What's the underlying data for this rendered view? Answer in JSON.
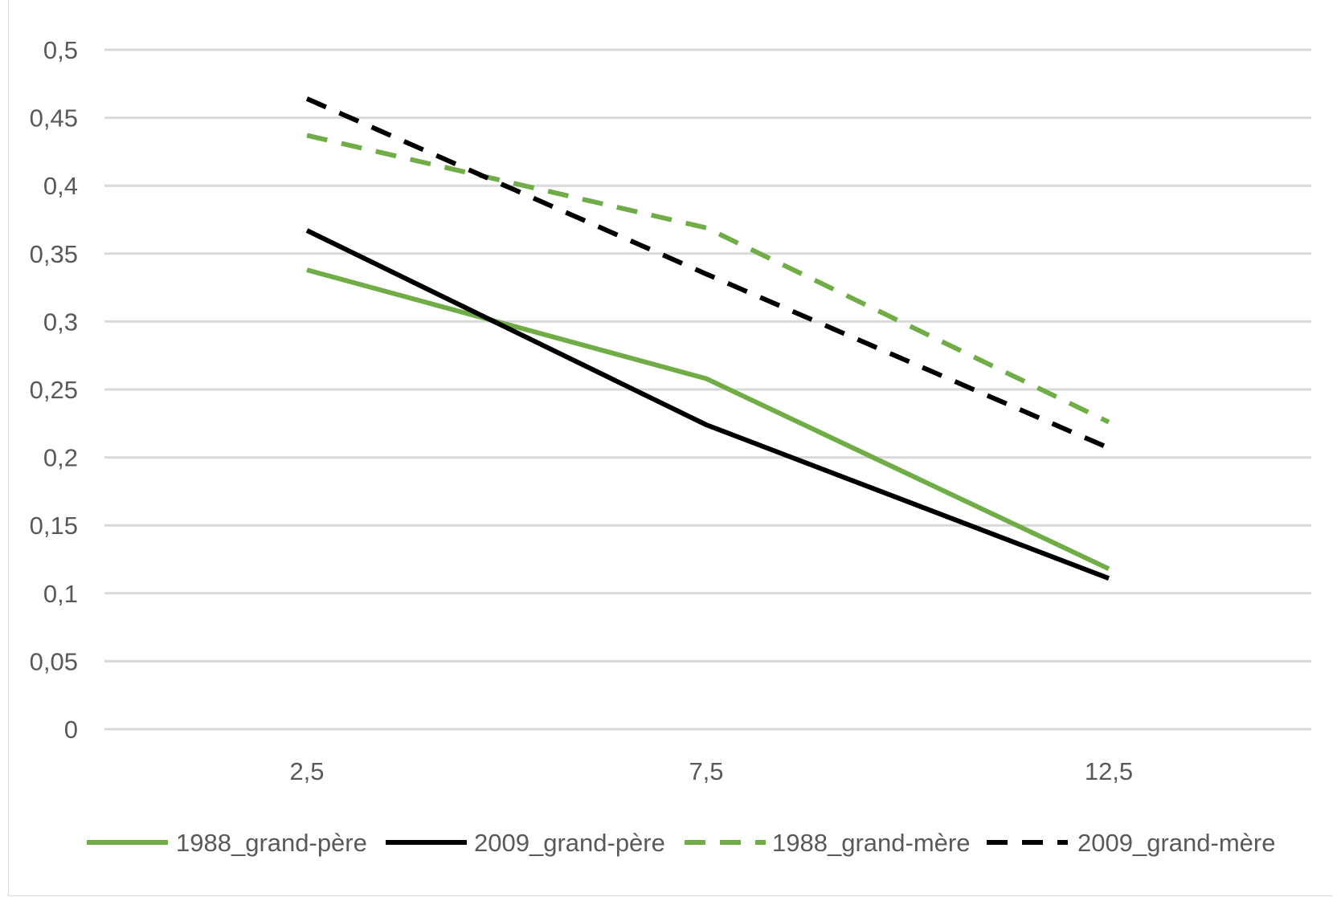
{
  "chart_data": {
    "type": "line",
    "title": "",
    "xlabel": "",
    "ylabel": "",
    "categories": [
      "2,5",
      "7,5",
      "12,5"
    ],
    "x": [
      2.5,
      7.5,
      12.5
    ],
    "ylim": [
      0,
      0.5
    ],
    "yticks": [
      0,
      0.05,
      0.1,
      0.15,
      0.2,
      0.25,
      0.3,
      0.35,
      0.4,
      0.45,
      0.5
    ],
    "ytick_labels": [
      "0",
      "0,05",
      "0,1",
      "0,15",
      "0,2",
      "0,25",
      "0,3",
      "0,35",
      "0,4",
      "0,45",
      "0,5"
    ],
    "grid": true,
    "legend_position": "bottom",
    "series": [
      {
        "name": "1988_grand-père",
        "values": [
          0.338,
          0.258,
          0.118
        ],
        "color": "#70ad47",
        "dashed": false
      },
      {
        "name": "2009_grand-père",
        "values": [
          0.367,
          0.224,
          0.111
        ],
        "color": "#000000",
        "dashed": false
      },
      {
        "name": "1988_grand-mère",
        "values": [
          0.437,
          0.369,
          0.226
        ],
        "color": "#70ad47",
        "dashed": true
      },
      {
        "name": "2009_grand-mère",
        "values": [
          0.464,
          0.335,
          0.207
        ],
        "color": "#000000",
        "dashed": true
      }
    ]
  }
}
